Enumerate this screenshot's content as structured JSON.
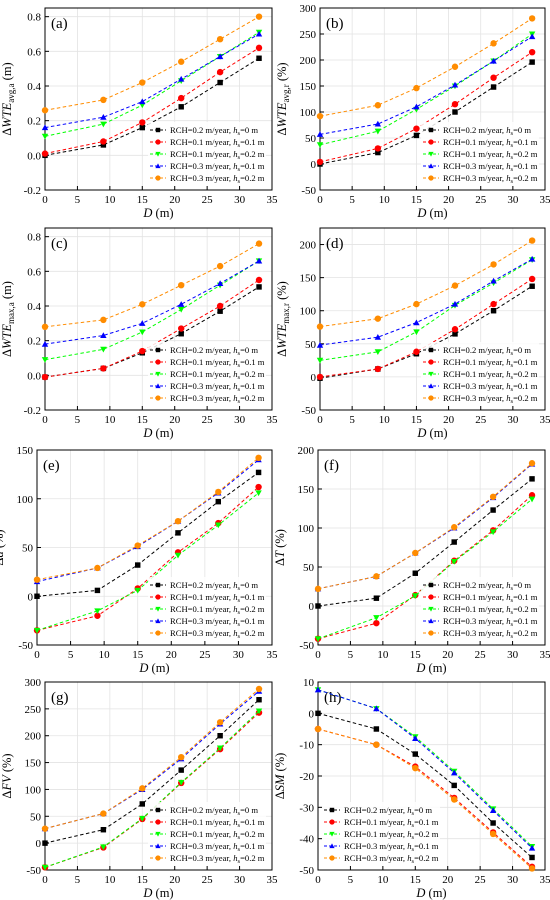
{
  "x_label_D": "D",
  "x_label_unit": "(m)",
  "legend": [
    {
      "label": "RCH=0.2 m/year, ",
      "hs": "0 m",
      "color": "#000000",
      "marker": "square"
    },
    {
      "label": "RCH=0.1 m/year, ",
      "hs": "0.1 m",
      "color": "#ff0000",
      "marker": "circle"
    },
    {
      "label": "RCH=0.1 m/year, ",
      "hs": "0.2 m",
      "color": "#00ff00",
      "marker": "triangle-down"
    },
    {
      "label": "RCH=0.3 m/year, ",
      "hs": "0.1 m",
      "color": "#0000ff",
      "marker": "triangle-up"
    },
    {
      "label": "RCH=0.3 m/year, ",
      "hs": "0.2 m",
      "color": "#ff8c00",
      "marker": "circle"
    }
  ],
  "chart_data": [
    {
      "panel": "(a)",
      "type": "line",
      "ylabel_main": "ΔWTE",
      "ylabel_sub": "avg,a",
      "ylabel_unit": " (m)",
      "xlim": [
        0,
        35
      ],
      "ylim": [
        -0.2,
        0.85
      ],
      "xticks": [
        0,
        5,
        10,
        15,
        20,
        25,
        30,
        35
      ],
      "yticks": [
        -0.2,
        0,
        0.2,
        0.4,
        0.6,
        0.8
      ],
      "ytick_labels": [
        "-0.2",
        "0.0",
        "0.2",
        "0.4",
        "0.6",
        "0.8"
      ],
      "legend_position": "bottom-right",
      "x": [
        0,
        9,
        15,
        21,
        27,
        33
      ],
      "series": [
        {
          "values": [
            0.0,
            0.06,
            0.16,
            0.28,
            0.42,
            0.56
          ]
        },
        {
          "values": [
            0.01,
            0.08,
            0.19,
            0.33,
            0.48,
            0.62
          ]
        },
        {
          "values": [
            0.11,
            0.18,
            0.29,
            0.43,
            0.57,
            0.71
          ]
        },
        {
          "values": [
            0.16,
            0.22,
            0.31,
            0.44,
            0.57,
            0.7
          ]
        },
        {
          "values": [
            0.26,
            0.32,
            0.42,
            0.54,
            0.67,
            0.8
          ]
        }
      ]
    },
    {
      "panel": "(b)",
      "type": "line",
      "ylabel_main": "ΔWTE",
      "ylabel_sub": "avg,r",
      "ylabel_unit": " (%)",
      "xlim": [
        0,
        35
      ],
      "ylim": [
        -50,
        300
      ],
      "xticks": [
        0,
        5,
        10,
        15,
        20,
        25,
        30,
        35
      ],
      "yticks": [
        -50,
        0,
        50,
        100,
        150,
        200,
        250,
        300
      ],
      "ytick_labels": [
        "-50",
        "0",
        "50",
        "100",
        "150",
        "200",
        "250",
        "300"
      ],
      "legend_position": "bottom-right",
      "x": [
        0,
        9,
        15,
        21,
        27,
        33
      ],
      "series": [
        {
          "values": [
            0,
            22,
            55,
            100,
            148,
            196
          ]
        },
        {
          "values": [
            4,
            30,
            68,
            115,
            166,
            215
          ]
        },
        {
          "values": [
            37,
            63,
            105,
            150,
            198,
            250
          ]
        },
        {
          "values": [
            57,
            77,
            110,
            152,
            198,
            245
          ]
        },
        {
          "values": [
            92,
            113,
            146,
            187,
            232,
            280
          ]
        }
      ]
    },
    {
      "panel": "(c)",
      "type": "line",
      "ylabel_main": "ΔWTE",
      "ylabel_sub": "max,a",
      "ylabel_unit": " (m)",
      "xlim": [
        0,
        35
      ],
      "ylim": [
        -0.2,
        0.85
      ],
      "xticks": [
        0,
        5,
        10,
        15,
        20,
        25,
        30,
        35
      ],
      "yticks": [
        -0.2,
        0,
        0.2,
        0.4,
        0.6,
        0.8
      ],
      "ytick_labels": [
        "-0.2",
        "0.0",
        "0.2",
        "0.4",
        "0.6",
        "0.8"
      ],
      "legend_position": "bottom-right",
      "x": [
        0,
        9,
        15,
        21,
        27,
        33
      ],
      "series": [
        {
          "values": [
            -0.01,
            0.04,
            0.13,
            0.24,
            0.37,
            0.51
          ]
        },
        {
          "values": [
            -0.01,
            0.04,
            0.14,
            0.27,
            0.4,
            0.55
          ]
        },
        {
          "values": [
            0.09,
            0.15,
            0.25,
            0.38,
            0.52,
            0.66
          ]
        },
        {
          "values": [
            0.18,
            0.23,
            0.3,
            0.41,
            0.53,
            0.66
          ]
        },
        {
          "values": [
            0.28,
            0.32,
            0.41,
            0.52,
            0.63,
            0.76
          ]
        }
      ]
    },
    {
      "panel": "(d)",
      "type": "line",
      "ylabel_main": "ΔWTE",
      "ylabel_sub": "max,r",
      "ylabel_unit": " (%)",
      "xlim": [
        0,
        35
      ],
      "ylim": [
        -50,
        225
      ],
      "xticks": [
        0,
        5,
        10,
        15,
        20,
        25,
        30,
        35
      ],
      "yticks": [
        -50,
        0,
        50,
        100,
        150,
        200
      ],
      "ytick_labels": [
        "-50",
        "0",
        "50",
        "100",
        "150",
        "200"
      ],
      "legend_position": "bottom-right",
      "x": [
        0,
        9,
        15,
        21,
        27,
        33
      ],
      "series": [
        {
          "values": [
            -2,
            12,
            35,
            65,
            100,
            137
          ]
        },
        {
          "values": [
            0,
            12,
            38,
            72,
            110,
            148
          ]
        },
        {
          "values": [
            25,
            38,
            68,
            108,
            142,
            177
          ]
        },
        {
          "values": [
            48,
            60,
            82,
            110,
            145,
            178
          ]
        },
        {
          "values": [
            76,
            88,
            110,
            138,
            170,
            206
          ]
        }
      ]
    },
    {
      "panel": "(e)",
      "type": "line",
      "ylabel_main": "Δd",
      "ylabel_sub": "",
      "ylabel_unit": " (%)",
      "xlim": [
        0,
        35
      ],
      "ylim": [
        -50,
        150
      ],
      "xticks": [
        0,
        5,
        10,
        15,
        20,
        25,
        30,
        35
      ],
      "yticks": [
        -50,
        0,
        50,
        100,
        150
      ],
      "ytick_labels": [
        "-50",
        "0",
        "50",
        "100",
        "150"
      ],
      "legend_position": "bottom-right",
      "x": [
        0,
        9,
        15,
        21,
        27,
        33
      ],
      "series": [
        {
          "values": [
            0,
            6,
            32,
            65,
            97,
            127
          ]
        },
        {
          "values": [
            -35,
            -20,
            8,
            45,
            75,
            112
          ]
        },
        {
          "values": [
            -35,
            -15,
            6,
            42,
            73,
            106
          ]
        },
        {
          "values": [
            15,
            29,
            51,
            77,
            106,
            140
          ]
        },
        {
          "values": [
            17,
            29,
            52,
            77,
            107,
            142
          ]
        }
      ]
    },
    {
      "panel": "(f)",
      "type": "line",
      "ylabel_main": "ΔT",
      "ylabel_sub": "",
      "ylabel_unit": " (%)",
      "xlim": [
        0,
        35
      ],
      "ylim": [
        -50,
        200
      ],
      "xticks": [
        0,
        5,
        10,
        15,
        20,
        25,
        30,
        35
      ],
      "yticks": [
        -50,
        0,
        50,
        100,
        150,
        200
      ],
      "ytick_labels": [
        "-50",
        "0",
        "50",
        "100",
        "150",
        "200"
      ],
      "legend_position": "bottom-right",
      "x": [
        0,
        9,
        15,
        21,
        27,
        33
      ],
      "series": [
        {
          "values": [
            0,
            10,
            42,
            82,
            123,
            163
          ]
        },
        {
          "values": [
            -42,
            -22,
            14,
            58,
            97,
            142
          ]
        },
        {
          "values": [
            -42,
            -15,
            13,
            57,
            95,
            137
          ]
        },
        {
          "values": [
            22,
            38,
            68,
            100,
            139,
            182
          ]
        },
        {
          "values": [
            22,
            38,
            68,
            101,
            140,
            183
          ]
        }
      ]
    },
    {
      "panel": "(g)",
      "type": "line",
      "ylabel_main": "ΔFV",
      "ylabel_sub": "",
      "ylabel_unit": " (%)",
      "xlim": [
        0,
        35
      ],
      "ylim": [
        -50,
        300
      ],
      "xticks": [
        0,
        5,
        10,
        15,
        20,
        25,
        30,
        35
      ],
      "yticks": [
        -50,
        0,
        50,
        100,
        150,
        200,
        250,
        300
      ],
      "ytick_labels": [
        "-50",
        "0",
        "50",
        "100",
        "150",
        "200",
        "250",
        "300"
      ],
      "legend_position": "bottom-right",
      "x": [
        0,
        9,
        15,
        21,
        27,
        33
      ],
      "series": [
        {
          "values": [
            0,
            25,
            73,
            136,
            200,
            267
          ]
        },
        {
          "values": [
            -45,
            -8,
            45,
            112,
            175,
            243
          ]
        },
        {
          "values": [
            -45,
            -7,
            46,
            113,
            177,
            246
          ]
        },
        {
          "values": [
            27,
            55,
            100,
            157,
            222,
            283
          ]
        },
        {
          "values": [
            27,
            55,
            102,
            160,
            225,
            287
          ]
        }
      ]
    },
    {
      "panel": "(h)",
      "type": "line",
      "ylabel_main": "ΔSM",
      "ylabel_sub": "",
      "ylabel_unit": " (%)",
      "xlim": [
        0,
        35
      ],
      "ylim": [
        -50,
        10
      ],
      "xticks": [
        0,
        5,
        10,
        15,
        20,
        25,
        30,
        35
      ],
      "yticks": [
        -50,
        -40,
        -30,
        -20,
        -10,
        0,
        10
      ],
      "ytick_labels": [
        "-50",
        "-40",
        "-30",
        "-20",
        "-10",
        "0",
        "10"
      ],
      "legend_position": "bottom-left",
      "x": [
        0,
        9,
        15,
        21,
        27,
        33
      ],
      "series": [
        {
          "values": [
            0,
            -5,
            -13,
            -23,
            -35,
            -46
          ]
        },
        {
          "values": [
            -5,
            -10,
            -17,
            -27,
            -38,
            -49
          ]
        },
        {
          "values": [
            7.5,
            1.5,
            -7.5,
            -18.5,
            -30.5,
            -42.5
          ]
        },
        {
          "values": [
            7.5,
            1.5,
            -8,
            -19,
            -31,
            -43
          ]
        },
        {
          "values": [
            -5,
            -10,
            -17.5,
            -27.5,
            -38.5,
            -49.5
          ]
        }
      ]
    }
  ]
}
